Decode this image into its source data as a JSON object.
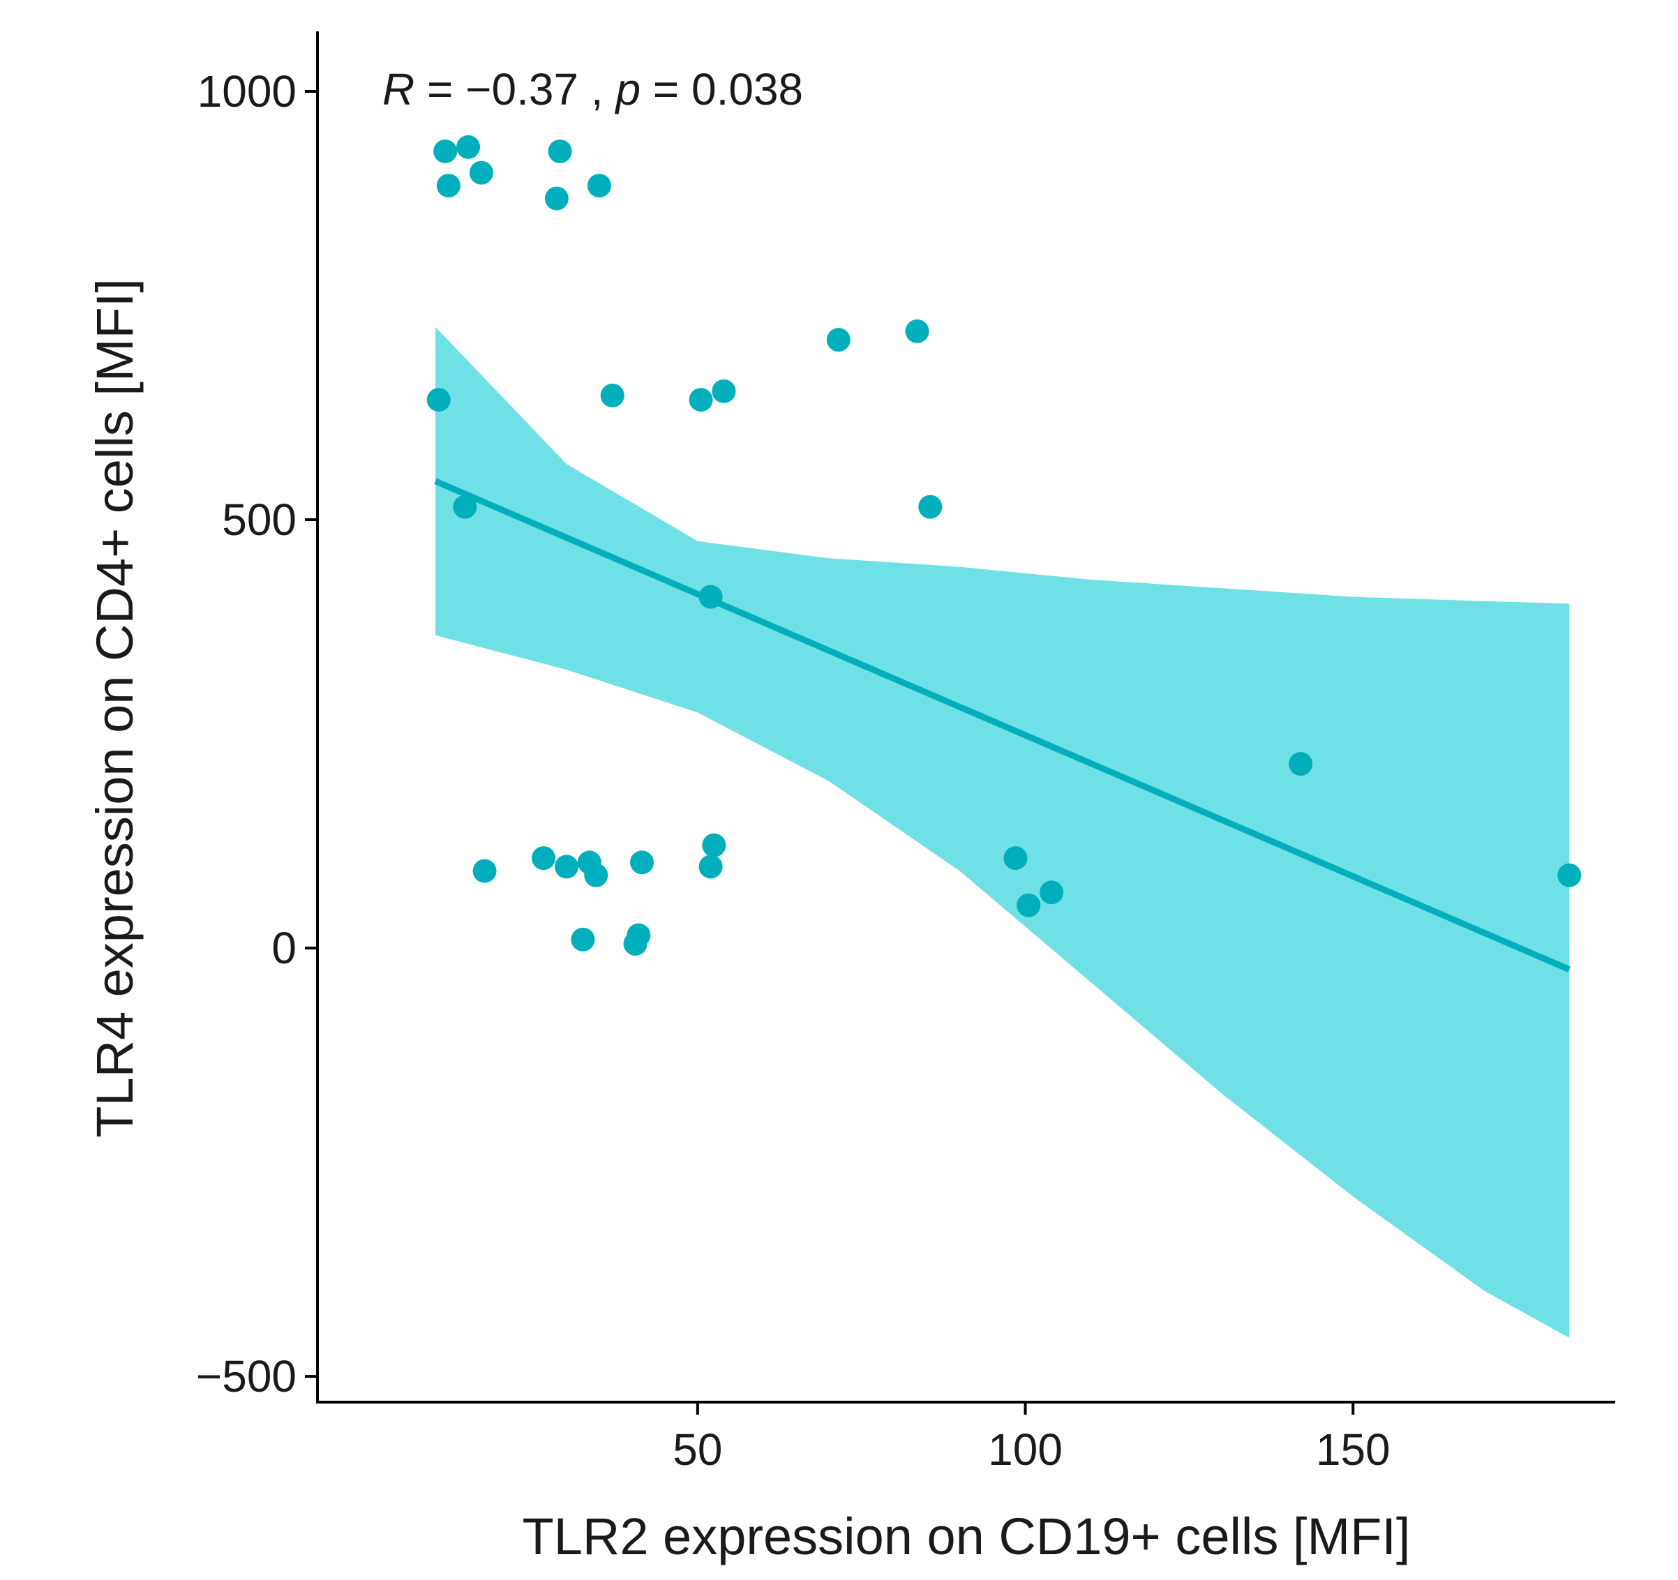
{
  "chart_data": {
    "type": "scatter",
    "xlabel": "TLR2 expression on CD19+ cells [MFI]",
    "ylabel": "TLR4 expression on CD4+ cells [MFI]",
    "xlim": [
      -8,
      190
    ],
    "ylim": [
      -530,
      1070
    ],
    "x_ticks": [
      50,
      100,
      150
    ],
    "y_ticks": [
      -500,
      0,
      500,
      1000
    ],
    "x_tick_labels": [
      "50",
      "100",
      "150"
    ],
    "y_tick_labels": [
      "−500",
      "0",
      "500",
      "1000"
    ],
    "annotation": {
      "R_symbol": "R",
      "R_value": " = −0.37 , ",
      "p_symbol": "p",
      "p_value": " = 0.038"
    },
    "colors": {
      "points": "#00AFBB",
      "line": "#00AFBB",
      "band": "#6FE0E6",
      "axis": "#000000"
    },
    "points": [
      {
        "x": 10.5,
        "y": 640
      },
      {
        "x": 11.5,
        "y": 930
      },
      {
        "x": 12,
        "y": 890
      },
      {
        "x": 15,
        "y": 935
      },
      {
        "x": 17,
        "y": 905
      },
      {
        "x": 14.5,
        "y": 515
      },
      {
        "x": 17.5,
        "y": 90
      },
      {
        "x": 26.5,
        "y": 105
      },
      {
        "x": 28.5,
        "y": 875
      },
      {
        "x": 29,
        "y": 930
      },
      {
        "x": 30,
        "y": 95
      },
      {
        "x": 32.5,
        "y": 10
      },
      {
        "x": 33.5,
        "y": 100
      },
      {
        "x": 34.5,
        "y": 85
      },
      {
        "x": 35,
        "y": 890
      },
      {
        "x": 37,
        "y": 645
      },
      {
        "x": 40.5,
        "y": 5
      },
      {
        "x": 41,
        "y": 15
      },
      {
        "x": 41.5,
        "y": 100
      },
      {
        "x": 50.5,
        "y": 640
      },
      {
        "x": 52,
        "y": 410
      },
      {
        "x": 52,
        "y": 95
      },
      {
        "x": 52.5,
        "y": 120
      },
      {
        "x": 54,
        "y": 650
      },
      {
        "x": 71.5,
        "y": 710
      },
      {
        "x": 83.5,
        "y": 720
      },
      {
        "x": 85.5,
        "y": 515
      },
      {
        "x": 98.5,
        "y": 105
      },
      {
        "x": 100.5,
        "y": 50
      },
      {
        "x": 104,
        "y": 65
      },
      {
        "x": 142,
        "y": 215
      },
      {
        "x": 183,
        "y": 85
      }
    ],
    "regression_line": [
      {
        "x": 10,
        "y": 545
      },
      {
        "x": 183,
        "y": -25
      }
    ],
    "confidence_band": {
      "x": [
        10,
        30,
        50,
        70,
        90,
        110,
        130,
        150,
        170,
        183
      ],
      "upper": [
        725,
        565,
        475,
        455,
        445,
        430,
        420,
        410,
        405,
        402
      ],
      "lower": [
        365,
        325,
        275,
        195,
        90,
        -40,
        -170,
        -290,
        -400,
        -455
      ]
    }
  }
}
